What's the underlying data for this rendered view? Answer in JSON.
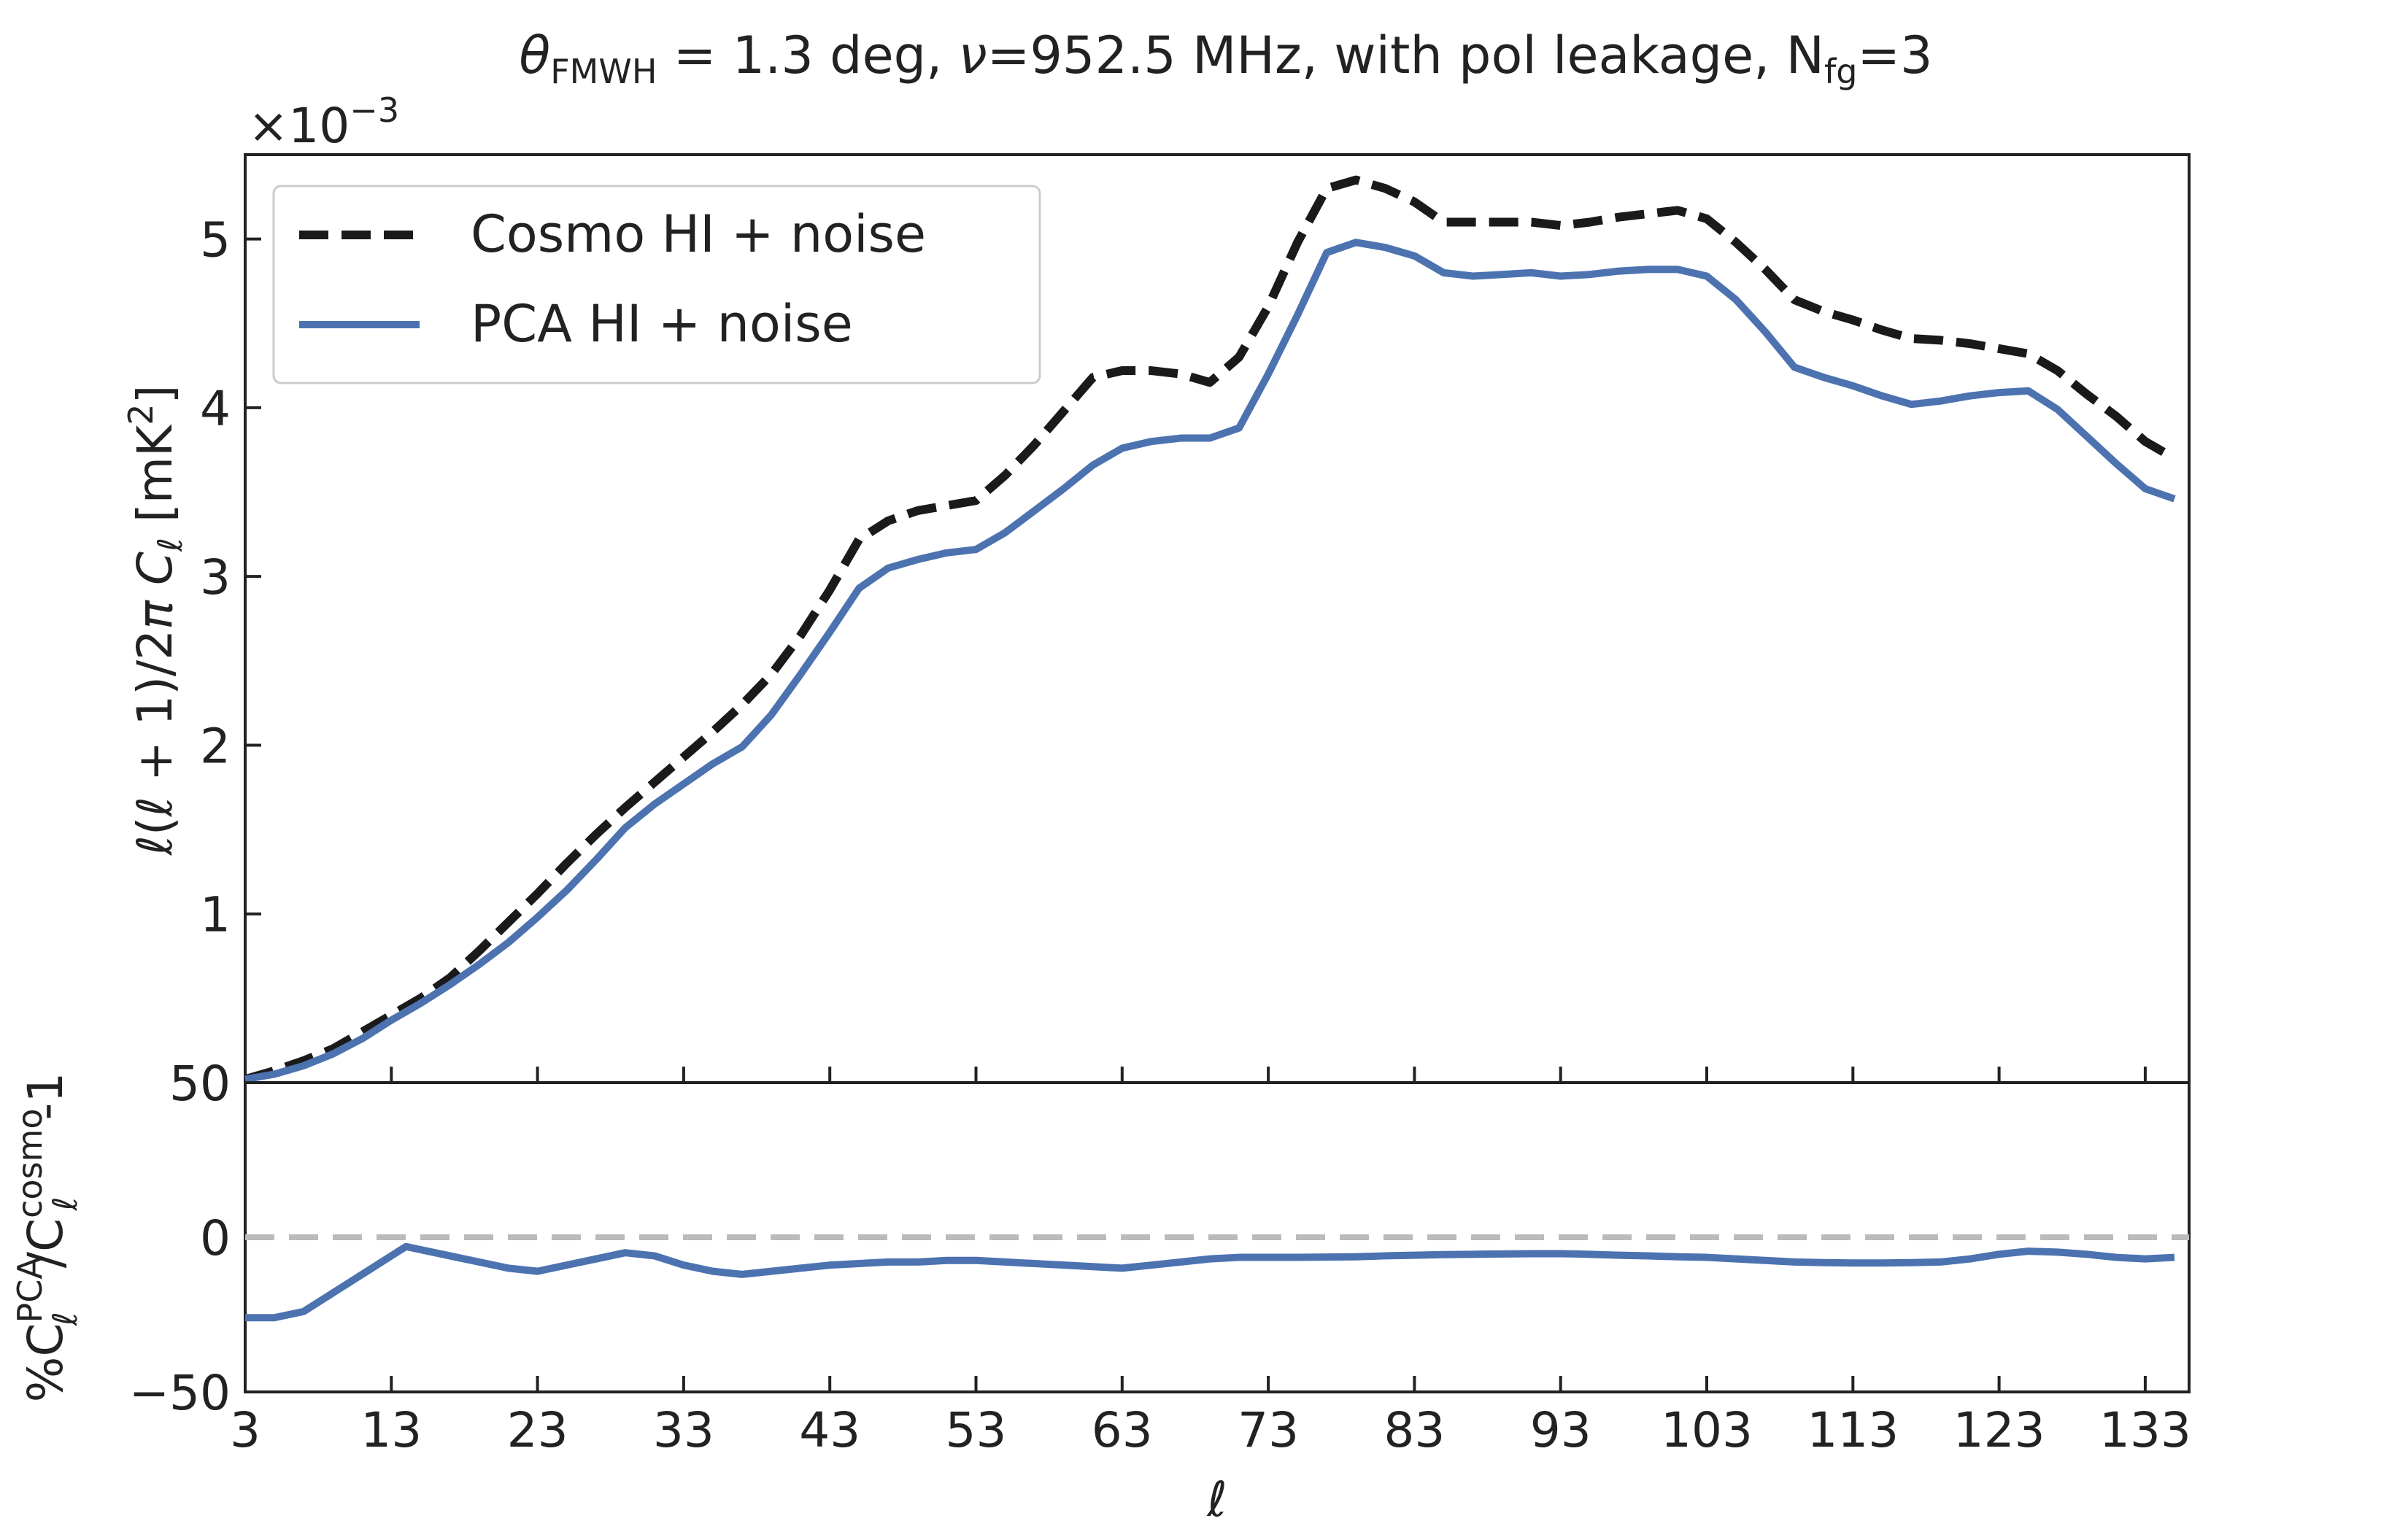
{
  "chart_data": [
    {
      "type": "line",
      "title_parts": {
        "symbol": "θ",
        "symbol_sub": "FMWH",
        "middle": " = 1.3 deg, ",
        "nu": "ν",
        "after_nu": "=952.5 MHz, with pol leakage, N",
        "n_sub": "fg",
        "end": "=3"
      },
      "ylabel_parts": {
        "ell1": "ℓ",
        "paren_open": "(",
        "ell2": "ℓ",
        "mid": " + 1)/2",
        "pi": "π",
        "C": " C",
        "c_sub": "ℓ",
        "unit": " [mK",
        "unit_sup": "2",
        "unit_close": "]"
      },
      "y_offset_label": {
        "base": "×10",
        "exponent": "−3"
      },
      "xlim": [
        3,
        136
      ],
      "ylim": [
        0,
        5.5
      ],
      "y_scale_factor": 0.001,
      "yticks": [
        0,
        1,
        2,
        3,
        4,
        5
      ],
      "ytick_labels": [
        "0",
        "1",
        "2",
        "3",
        "4",
        "5"
      ],
      "xticks": [
        3,
        13,
        23,
        33,
        43,
        53,
        63,
        73,
        83,
        93,
        103,
        113,
        123,
        133
      ],
      "grid": false,
      "legend_position": "top-left",
      "x": [
        3,
        5,
        7,
        9,
        11,
        13,
        15,
        17,
        19,
        21,
        23,
        25,
        27,
        29,
        31,
        33,
        35,
        37,
        39,
        41,
        43,
        45,
        47,
        49,
        51,
        53,
        55,
        57,
        59,
        61,
        63,
        65,
        67,
        69,
        71,
        73,
        75,
        77,
        79,
        81,
        83,
        85,
        87,
        89,
        91,
        93,
        95,
        97,
        99,
        101,
        103,
        105,
        107,
        109,
        111,
        113,
        115,
        117,
        119,
        121,
        123,
        125,
        127,
        129,
        131,
        133,
        135
      ],
      "series": [
        {
          "name": "Cosmo HI + noise",
          "color": "#1a1a1a",
          "dash": "dashed",
          "values": [
            0.02,
            0.07,
            0.13,
            0.2,
            0.3,
            0.4,
            0.5,
            0.62,
            0.78,
            0.95,
            1.12,
            1.3,
            1.47,
            1.63,
            1.78,
            1.93,
            2.08,
            2.24,
            2.42,
            2.65,
            2.92,
            3.22,
            3.33,
            3.39,
            3.42,
            3.45,
            3.6,
            3.78,
            3.98,
            4.18,
            4.22,
            4.22,
            4.2,
            4.15,
            4.3,
            4.6,
            4.98,
            5.3,
            5.35,
            5.3,
            5.22,
            5.1,
            5.1,
            5.1,
            5.1,
            5.08,
            5.1,
            5.13,
            5.15,
            5.17,
            5.12,
            4.98,
            4.82,
            4.64,
            4.57,
            4.52,
            4.46,
            4.41,
            4.4,
            4.38,
            4.35,
            4.32,
            4.22,
            4.08,
            3.95,
            3.8,
            3.7
          ]
        },
        {
          "name": "PCA HI + noise",
          "color": "#4c72b0",
          "dash": "solid",
          "values": [
            0.02,
            0.05,
            0.1,
            0.17,
            0.26,
            0.37,
            0.47,
            0.58,
            0.7,
            0.83,
            0.98,
            1.14,
            1.32,
            1.51,
            1.65,
            1.77,
            1.89,
            1.99,
            2.18,
            2.42,
            2.67,
            2.93,
            3.05,
            3.1,
            3.14,
            3.16,
            3.26,
            3.39,
            3.52,
            3.66,
            3.76,
            3.8,
            3.82,
            3.82,
            3.88,
            4.2,
            4.55,
            4.92,
            4.98,
            4.95,
            4.9,
            4.8,
            4.78,
            4.79,
            4.8,
            4.78,
            4.79,
            4.81,
            4.82,
            4.82,
            4.78,
            4.64,
            4.45,
            4.24,
            4.18,
            4.13,
            4.07,
            4.02,
            4.04,
            4.07,
            4.09,
            4.1,
            3.99,
            3.83,
            3.67,
            3.52,
            3.46
          ]
        }
      ]
    },
    {
      "type": "line",
      "xlabel": "ℓ",
      "ylabel_parts": {
        "pct": "%C",
        "sup1": "PCA",
        "sub1": "ℓ",
        "slash": "/C",
        "sup2": "cosmo",
        "sub2": "ℓ",
        "tail": "-1"
      },
      "xlim": [
        3,
        136
      ],
      "ylim": [
        -50,
        50
      ],
      "yticks": [
        -50,
        0,
        50
      ],
      "ytick_labels": [
        "−50",
        "0",
        "50"
      ],
      "xticks": [
        3,
        13,
        23,
        33,
        43,
        53,
        63,
        73,
        83,
        93,
        103,
        113,
        123,
        133
      ],
      "xtick_labels": [
        "3",
        "13",
        "23",
        "33",
        "43",
        "53",
        "63",
        "73",
        "83",
        "93",
        "103",
        "113",
        "123",
        "133"
      ],
      "grid": false,
      "reference_line": {
        "y": 0,
        "color": "#bbbbbb",
        "dash": "dashed"
      },
      "x": [
        3,
        5,
        7,
        9,
        11,
        13,
        14,
        15,
        17,
        19,
        21,
        23,
        25,
        27,
        29,
        31,
        33,
        35,
        37,
        39,
        41,
        43,
        45,
        47,
        49,
        51,
        53,
        55,
        57,
        59,
        61,
        63,
        65,
        67,
        69,
        71,
        73,
        75,
        77,
        79,
        81,
        83,
        85,
        87,
        89,
        91,
        93,
        95,
        97,
        99,
        101,
        103,
        105,
        107,
        109,
        111,
        113,
        115,
        117,
        119,
        121,
        123,
        125,
        127,
        129,
        131,
        133,
        135
      ],
      "series": [
        {
          "color": "#4c72b0",
          "dash": "solid",
          "values": [
            -26,
            -26,
            -24,
            -18,
            -12,
            -6,
            -3,
            -4,
            -6,
            -8,
            -10,
            -11,
            -9,
            -7,
            -5,
            -6,
            -9,
            -11,
            -12,
            -11,
            -10,
            -9,
            -8.5,
            -8,
            -8,
            -7.5,
            -7.5,
            -8,
            -8.5,
            -9,
            -9.5,
            -10,
            -9,
            -8,
            -7,
            -6.5,
            -6.5,
            -6.5,
            -6.4,
            -6.3,
            -6,
            -5.8,
            -5.6,
            -5.5,
            -5.4,
            -5.3,
            -5.3,
            -5.5,
            -5.8,
            -6,
            -6.3,
            -6.5,
            -7,
            -7.5,
            -8,
            -8.2,
            -8.3,
            -8.3,
            -8.2,
            -8,
            -7,
            -5.5,
            -4.5,
            -4.8,
            -5.5,
            -6.5,
            -7,
            -6.5
          ]
        }
      ]
    }
  ]
}
